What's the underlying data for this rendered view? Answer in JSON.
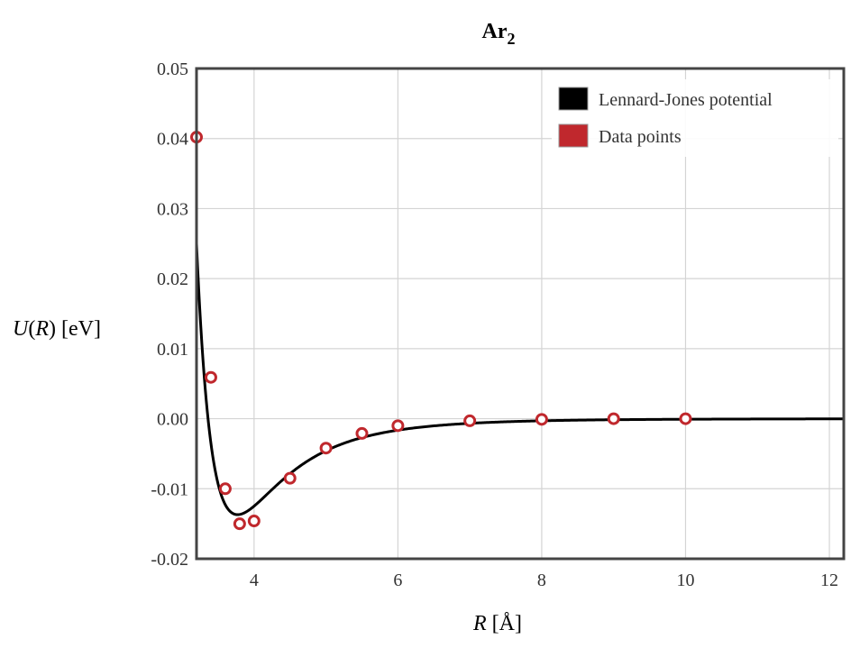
{
  "chart_data": {
    "type": "line",
    "title": "Ar",
    "title_subscript": "2",
    "xlabel_var": "R",
    "xlabel_unit": "[Å]",
    "ylabel_func": "U",
    "ylabel_arg": "R",
    "ylabel_unit": "[eV]",
    "xlim": [
      3.2,
      12.2
    ],
    "ylim": [
      -0.02,
      0.05
    ],
    "x_ticks": [
      4,
      6,
      8,
      10,
      12
    ],
    "x_tick_labels": [
      "4",
      "6",
      "8",
      "10",
      "12"
    ],
    "y_ticks": [
      -0.02,
      -0.01,
      0.0,
      0.01,
      0.02,
      0.03,
      0.04,
      0.05
    ],
    "y_tick_labels": [
      "-0.02",
      "-0.01",
      "0.00",
      "0.01",
      "0.02",
      "0.03",
      "0.04",
      "0.05"
    ],
    "grid": true,
    "legend_position": "top-right",
    "series": [
      {
        "name": "Lennard-Jones potential",
        "kind": "line",
        "color": "#000000",
        "model": "lennard-jones",
        "epsilon": 0.0137,
        "sigma": 3.36,
        "x_range": [
          3.2,
          12.2
        ]
      },
      {
        "name": "Data points",
        "kind": "scatter",
        "color": "#c0282d",
        "x": [
          3.2,
          3.4,
          3.6,
          3.8,
          4.0,
          4.5,
          5.0,
          5.5,
          6.0,
          7.0,
          8.0,
          9.0,
          10.0
        ],
        "y": [
          0.0402,
          0.0059,
          -0.01,
          -0.015,
          -0.0146,
          -0.0085,
          -0.0042,
          -0.0021,
          -0.001,
          -0.0003,
          -0.0001,
          0.0,
          0.0
        ]
      }
    ]
  }
}
